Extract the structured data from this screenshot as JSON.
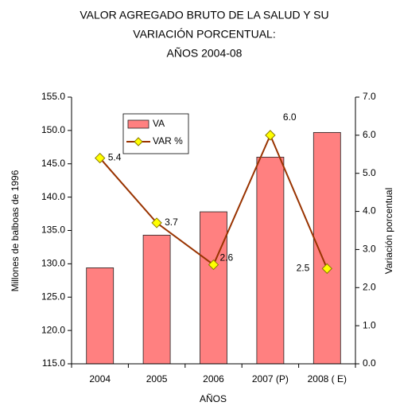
{
  "chart_data": {
    "type": "bar",
    "title": [
      "VALOR AGREGADO BRUTO DE LA SALUD Y SU",
      "VARIACIÓN PORCENTUAL:",
      "AÑOS 2004-08"
    ],
    "x_label": "AÑOS",
    "y_label": "Millones de balboas de 1996",
    "y2_label": "Variación porcentual",
    "categories": [
      "2004",
      "2005",
      "2006",
      "2007 (P)",
      "2008 ( E)"
    ],
    "series": [
      {
        "name": "VA",
        "type": "bar",
        "color": "#ff8080",
        "values": [
          129.4,
          134.3,
          137.8,
          146.0,
          149.7
        ]
      },
      {
        "name": "VAR %",
        "type": "line",
        "axis": "y2",
        "color": "#993300",
        "marker_color": "#ffff00",
        "values": [
          5.4,
          3.7,
          2.6,
          6.0,
          2.5
        ],
        "value_labels": [
          "5.4",
          "3.7",
          "2.6",
          "6.0",
          "2.5"
        ]
      }
    ],
    "ylim": [
      115,
      155
    ],
    "yticks": [
      {
        "value": 115,
        "label": "115.0"
      },
      {
        "value": 120,
        "label": "120.0"
      },
      {
        "value": 125,
        "label": "125.0"
      },
      {
        "value": 130,
        "label": "130.0"
      },
      {
        "value": 135,
        "label": "135.0"
      },
      {
        "value": 140,
        "label": "140.0"
      },
      {
        "value": 145,
        "label": "145.0"
      },
      {
        "value": 150,
        "label": "150.0"
      },
      {
        "value": 155,
        "label": "155.0"
      }
    ],
    "y2lim": [
      0,
      7
    ],
    "y2ticks": [
      {
        "value": 0,
        "label": "0.0"
      },
      {
        "value": 1,
        "label": "1.0"
      },
      {
        "value": 2,
        "label": "2.0"
      },
      {
        "value": 3,
        "label": "3.0"
      },
      {
        "value": 4,
        "label": "4.0"
      },
      {
        "value": 5,
        "label": "5.0"
      },
      {
        "value": 6,
        "label": "6.0"
      },
      {
        "value": 7,
        "label": "7.0"
      }
    ],
    "grid": false,
    "legend": "top-left"
  }
}
